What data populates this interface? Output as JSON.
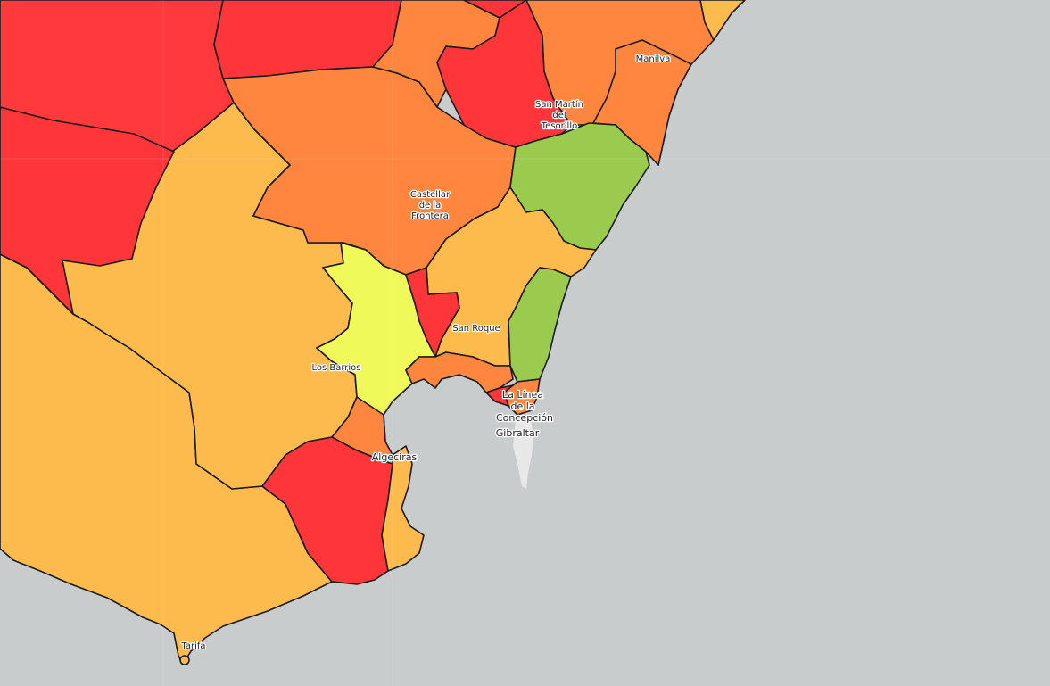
{
  "map": {
    "colors": {
      "sea": "#c8cccd",
      "red": "#fe3639",
      "dark_orange": "#fe863e",
      "orange": "#febb4d",
      "yellow": "#f0f95a",
      "green": "#9bcb4e",
      "gibraltar": "#e8e8e8"
    },
    "places": {
      "manilva": "Manilva",
      "san_martin_1": "San Martín",
      "san_martin_2": "del",
      "san_martin_3": "Tesorillo",
      "castellar_1": "Castellar",
      "castellar_2": "de la",
      "castellar_3": "Frontera",
      "san_roque": "San Roque",
      "los_barrios": "Los Barrios",
      "la_linea_1": "La Línea",
      "la_linea_2": "de la",
      "la_linea_3": "Concepción",
      "gibraltar": "Gibraltar",
      "algeciras": "Algeciras",
      "tarifa": "Tarifa"
    }
  }
}
